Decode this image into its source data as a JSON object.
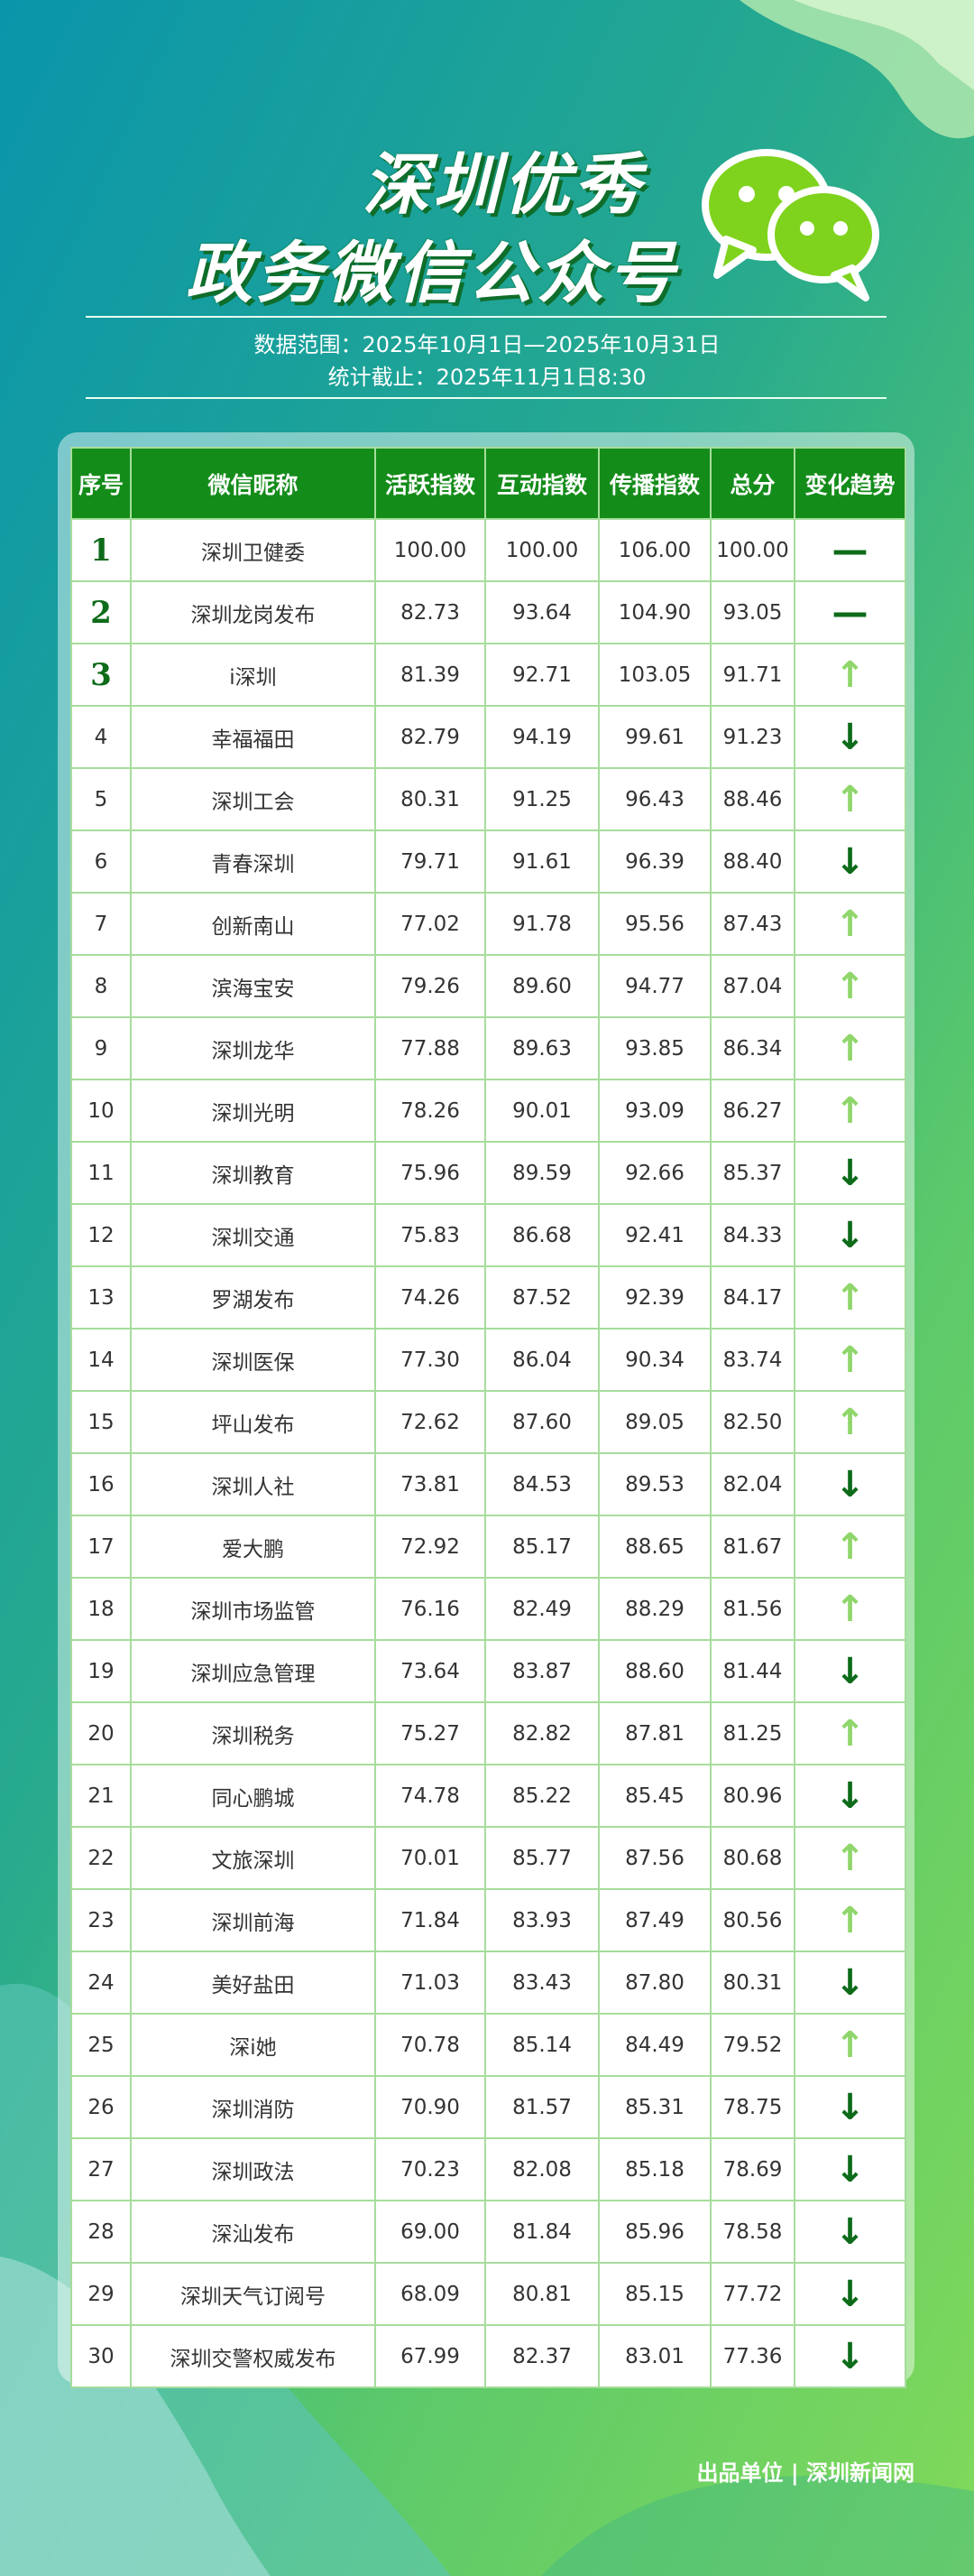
{
  "header": {
    "title_line1": "深圳优秀",
    "title_line2": "政务微信公众号",
    "range": "数据范围：2025年10月1日—2025年10月31日",
    "cutoff": "统计截止：2025年11月1日8:30"
  },
  "table": {
    "columns": [
      "序号",
      "微信昵称",
      "活跃指数",
      "互动指数",
      "传播指数",
      "总分",
      "变化趋势"
    ],
    "rows": [
      [
        "1",
        "深圳卫健委",
        "100.00",
        "100.00",
        "106.00",
        "100.00",
        "—"
      ],
      [
        "2",
        "深圳龙岗发布",
        "82.73",
        "93.64",
        "104.90",
        "93.05",
        "—"
      ],
      [
        "3",
        "i深圳",
        "81.39",
        "92.71",
        "103.05",
        "91.71",
        "↑"
      ],
      [
        "4",
        "幸福福田",
        "82.79",
        "94.19",
        "99.61",
        "91.23",
        "↓"
      ],
      [
        "5",
        "深圳工会",
        "80.31",
        "91.25",
        "96.43",
        "88.46",
        "↑"
      ],
      [
        "6",
        "青春深圳",
        "79.71",
        "91.61",
        "96.39",
        "88.40",
        "↓"
      ],
      [
        "7",
        "创新南山",
        "77.02",
        "91.78",
        "95.56",
        "87.43",
        "↑"
      ],
      [
        "8",
        "滨海宝安",
        "79.26",
        "89.60",
        "94.77",
        "87.04",
        "↑"
      ],
      [
        "9",
        "深圳龙华",
        "77.88",
        "89.63",
        "93.85",
        "86.34",
        "↑"
      ],
      [
        "10",
        "深圳光明",
        "78.26",
        "90.01",
        "93.09",
        "86.27",
        "↑"
      ],
      [
        "11",
        "深圳教育",
        "75.96",
        "89.59",
        "92.66",
        "85.37",
        "↓"
      ],
      [
        "12",
        "深圳交通",
        "75.83",
        "86.68",
        "92.41",
        "84.33",
        "↓"
      ],
      [
        "13",
        "罗湖发布",
        "74.26",
        "87.52",
        "92.39",
        "84.17",
        "↑"
      ],
      [
        "14",
        "深圳医保",
        "77.30",
        "86.04",
        "90.34",
        "83.74",
        "↑"
      ],
      [
        "15",
        "坪山发布",
        "72.62",
        "87.60",
        "89.05",
        "82.50",
        "↑"
      ],
      [
        "16",
        "深圳人社",
        "73.81",
        "84.53",
        "89.53",
        "82.04",
        "↓"
      ],
      [
        "17",
        "爱大鹏",
        "72.92",
        "85.17",
        "88.65",
        "81.67",
        "↑"
      ],
      [
        "18",
        "深圳市场监管",
        "76.16",
        "82.49",
        "88.29",
        "81.56",
        "↑"
      ],
      [
        "19",
        "深圳应急管理",
        "73.64",
        "83.87",
        "88.60",
        "81.44",
        "↓"
      ],
      [
        "20",
        "深圳税务",
        "75.27",
        "82.82",
        "87.81",
        "81.25",
        "↑"
      ],
      [
        "21",
        "同心鹏城",
        "74.78",
        "85.22",
        "85.45",
        "80.96",
        "↓"
      ],
      [
        "22",
        "文旅深圳",
        "70.01",
        "85.77",
        "87.56",
        "80.68",
        "↑"
      ],
      [
        "23",
        "深圳前海",
        "71.84",
        "83.93",
        "87.49",
        "80.56",
        "↑"
      ],
      [
        "24",
        "美好盐田",
        "71.03",
        "83.43",
        "87.80",
        "80.31",
        "↓"
      ],
      [
        "25",
        "深i她",
        "70.78",
        "85.14",
        "84.49",
        "79.52",
        "↑"
      ],
      [
        "26",
        "深圳消防",
        "70.90",
        "81.57",
        "85.31",
        "78.75",
        "↓"
      ],
      [
        "27",
        "深圳政法",
        "70.23",
        "82.08",
        "85.18",
        "78.69",
        "↓"
      ],
      [
        "28",
        "深汕发布",
        "69.00",
        "81.84",
        "85.96",
        "78.58",
        "↓"
      ],
      [
        "29",
        "深圳天气订阅号",
        "68.09",
        "80.81",
        "85.15",
        "77.72",
        "↓"
      ],
      [
        "30",
        "深圳交警权威发布",
        "67.99",
        "82.37",
        "83.01",
        "77.36",
        "↓"
      ]
    ],
    "trend_colors": [
      "#0d6b1a",
      "#0d6b1a",
      "#8fd66b",
      "#0d6b1a",
      "#8fd66b",
      "#0d6b1a",
      "#8fd66b",
      "#8fd66b",
      "#8fd66b",
      "#8fd66b",
      "#0d6b1a",
      "#0d6b1a",
      "#8fd66b",
      "#8fd66b",
      "#8fd66b",
      "#0d6b1a",
      "#8fd66b",
      "#8fd66b",
      "#0d6b1a",
      "#8fd66b",
      "#0d6b1a",
      "#8fd66b",
      "#8fd66b",
      "#0d6b1a",
      "#8fd66b",
      "#0d6b1a",
      "#0d6b1a",
      "#0d6b1a",
      "#0d6b1a",
      "#0d6b1a"
    ]
  },
  "footer": "出品单位 | 深圳新闻网"
}
